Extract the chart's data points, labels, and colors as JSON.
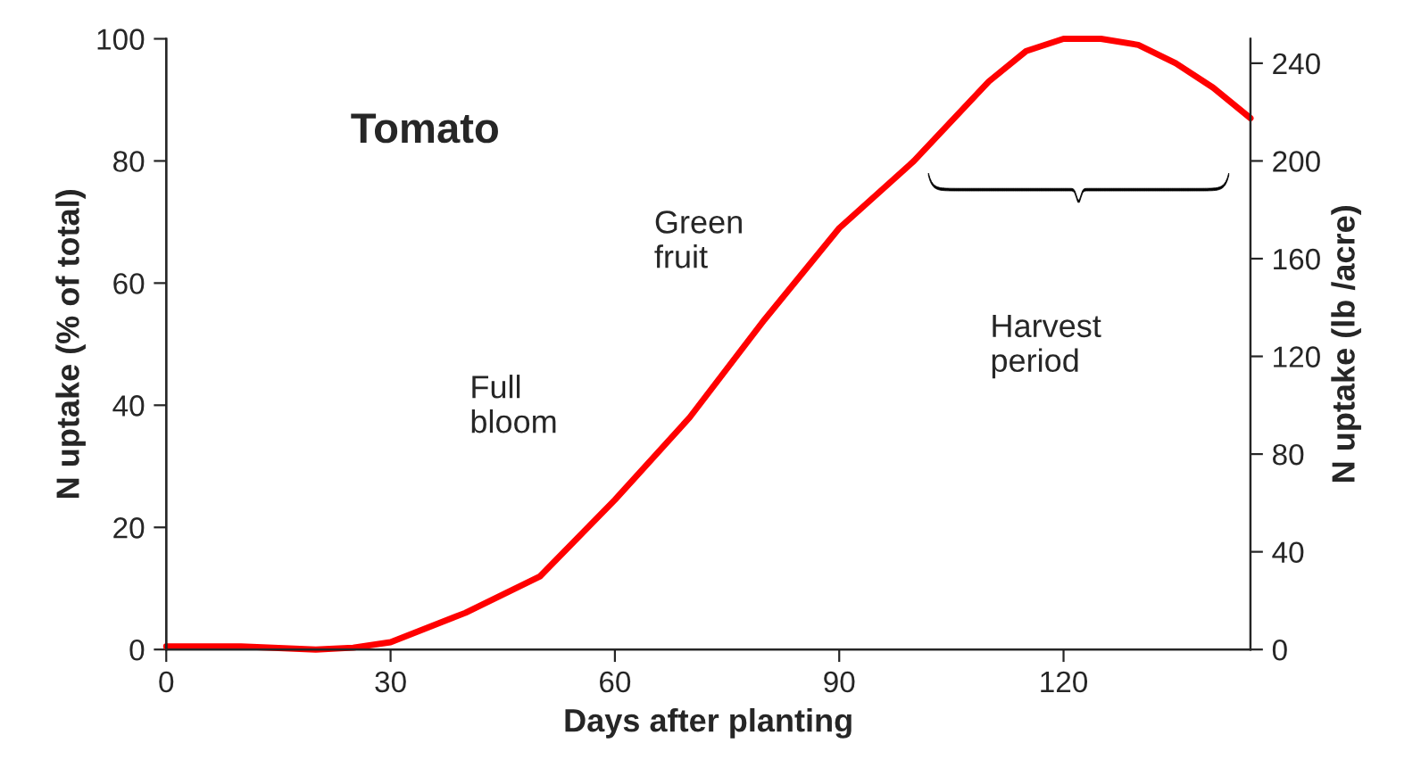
{
  "chart_data": {
    "type": "line",
    "xlabel": "Days after planting",
    "ylabel": "N uptake (% of total)",
    "y2label": "N uptake (lb /acre)",
    "annotations": [
      "Tomato",
      "Full\nbloom",
      "Green\nfruit",
      "Harvest\nperiod"
    ],
    "x": [
      0,
      10,
      20,
      25,
      30,
      40,
      50,
      60,
      70,
      80,
      90,
      100,
      110,
      115,
      120,
      125,
      130,
      135,
      140,
      145
    ],
    "series": [
      {
        "color": "#ff0000",
        "values": [
          0.5,
          0.5,
          0,
          0.3,
          1.2,
          6,
          12,
          24.5,
          38,
          54,
          69,
          80,
          93,
          98,
          100,
          100,
          99,
          96,
          92,
          87
        ]
      }
    ],
    "xlim": [
      0,
      145
    ],
    "xticks": [
      0,
      30,
      60,
      90,
      120
    ],
    "ylim": [
      0,
      100
    ],
    "yticks": [
      0,
      20,
      40,
      60,
      80,
      100
    ],
    "y2lim": [
      0,
      250
    ],
    "y2ticks": [
      0,
      40,
      80,
      120,
      160,
      200,
      240
    ],
    "grid": false,
    "legend": false,
    "marker": "none",
    "line_style": "solid"
  }
}
